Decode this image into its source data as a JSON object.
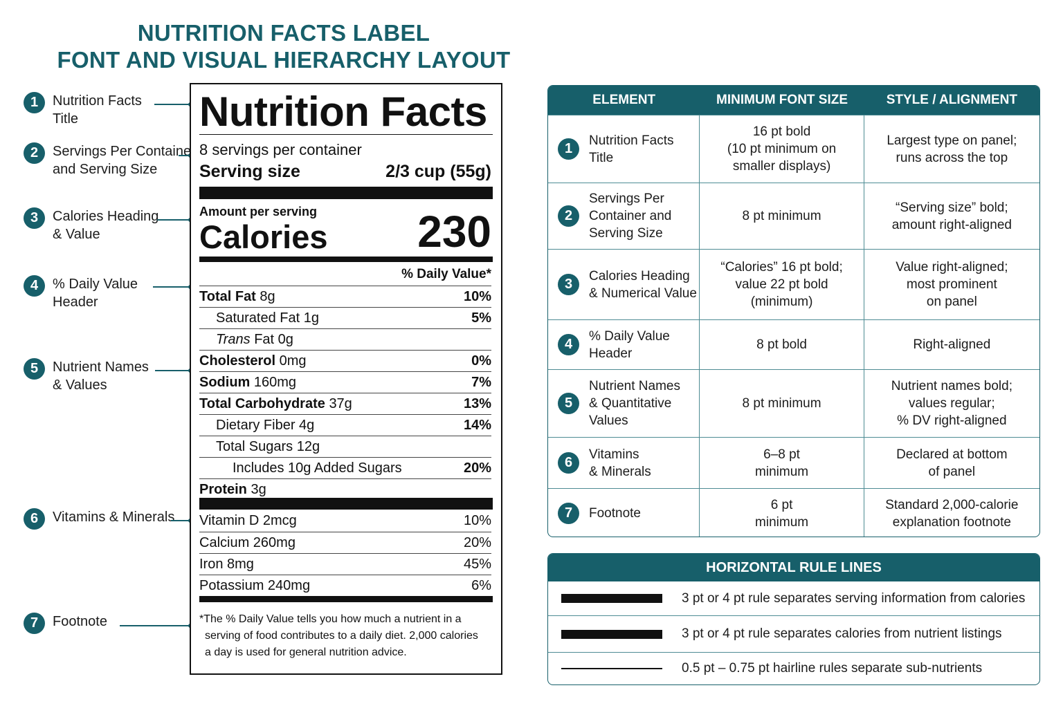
{
  "title": {
    "line1": "NUTRITION FACTS LABEL",
    "line2": "FONT AND VISUAL HIERARCHY LAYOUT"
  },
  "colors": {
    "accent": "#175f6a",
    "ink": "#111111",
    "border": "#4d8b93"
  },
  "callouts": [
    {
      "num": "1",
      "line1": "Nutrition Facts",
      "line2": "Title"
    },
    {
      "num": "2",
      "line1": "Servings Per Container",
      "line2": "and Serving Size"
    },
    {
      "num": "3",
      "line1": "Calories Heading",
      "line2": "& Value"
    },
    {
      "num": "4",
      "line1": "% Daily Value",
      "line2": "Header"
    },
    {
      "num": "5",
      "line1": "Nutrient Names",
      "line2": "& Values"
    },
    {
      "num": "6",
      "line1": "Vitamins & Minerals",
      "line2": ""
    },
    {
      "num": "7",
      "line1": "Footnote",
      "line2": ""
    }
  ],
  "label": {
    "title": "Nutrition Facts",
    "servings": "8 servings per container",
    "serving_size_label": "Serving size",
    "serving_size_value": "2/3 cup (55g)",
    "amount_per_serving": "Amount per serving",
    "calories_label": "Calories",
    "calories_value": "230",
    "dv_header": "% Daily Value*",
    "nutrients": [
      {
        "name": "Total Fat",
        "amount": "8g",
        "dv": "10%"
      },
      {
        "name": "Saturated Fat",
        "amount": "1g",
        "dv": "5%"
      },
      {
        "name": "Trans",
        "amount": "Fat 0g",
        "dv": ""
      },
      {
        "name": "Cholesterol",
        "amount": "0mg",
        "dv": "0%"
      },
      {
        "name": "Sodium",
        "amount": "160mg",
        "dv": "7%"
      },
      {
        "name": "Total Carbohydrate",
        "amount": "37g",
        "dv": "13%"
      },
      {
        "name": "Dietary Fiber",
        "amount": "4g",
        "dv": "14%"
      },
      {
        "name": "Total Sugars",
        "amount": "12g",
        "dv": ""
      },
      {
        "name": "Includes 10g Added Sugars",
        "amount": "",
        "dv": "20%"
      },
      {
        "name": "Protein",
        "amount": "3g",
        "dv": ""
      }
    ],
    "vitamins": [
      {
        "name": "Vitamin D 2mcg",
        "dv": "10%"
      },
      {
        "name": "Calcium 260mg",
        "dv": "20%"
      },
      {
        "name": "Iron 8mg",
        "dv": "45%"
      },
      {
        "name": "Potassium 240mg",
        "dv": "6%"
      }
    ],
    "footnote": {
      "line1": "*The % Daily Value tells you how much a nutrient in a",
      "line2": "serving of food contributes to a daily diet. 2,000 calories",
      "line3": "a day is used for general nutrition advice."
    }
  },
  "element_table": {
    "headers": {
      "element": "ELEMENT",
      "min_font": "MINIMUM FONT SIZE",
      "style": "STYLE / ALIGNMENT"
    },
    "rows": [
      {
        "num": "1",
        "element": [
          "Nutrition Facts",
          "Title"
        ],
        "min_font": [
          "16 pt bold",
          "(10 pt minimum on",
          "smaller displays)"
        ],
        "style": [
          "Largest type on panel;",
          "runs across the top"
        ]
      },
      {
        "num": "2",
        "element": [
          "Servings Per",
          "Container and",
          "Serving Size"
        ],
        "min_font": [
          "8 pt minimum"
        ],
        "style": [
          "“Serving size” bold;",
          "amount right-aligned"
        ]
      },
      {
        "num": "3",
        "element": [
          "Calories Heading",
          "& Numerical Value"
        ],
        "min_font": [
          "“Calories” 16 pt bold;",
          "value 22 pt bold",
          "(minimum)"
        ],
        "style": [
          "Value right-aligned;",
          "most prominent",
          "on panel"
        ]
      },
      {
        "num": "4",
        "element": [
          "% Daily Value",
          "Header"
        ],
        "min_font": [
          "8 pt bold"
        ],
        "style": [
          "Right-aligned"
        ]
      },
      {
        "num": "5",
        "element": [
          "Nutrient Names",
          "& Quantitative",
          "Values"
        ],
        "min_font": [
          "8 pt minimum"
        ],
        "style": [
          "Nutrient names bold;",
          "values regular;",
          "% DV right-aligned"
        ]
      },
      {
        "num": "6",
        "element": [
          "Vitamins",
          "& Minerals"
        ],
        "min_font": [
          "6–8 pt",
          "minimum"
        ],
        "style": [
          "Declared at bottom",
          "of panel"
        ]
      },
      {
        "num": "7",
        "element": [
          "Footnote"
        ],
        "min_font": [
          "6 pt",
          "minimum"
        ],
        "style": [
          "Standard 2,000-calorie",
          "explanation footnote"
        ]
      }
    ]
  },
  "rule_lines": {
    "title": "HORIZONTAL RULE LINES",
    "rows": [
      {
        "thickness": "thick",
        "desc": "3 pt or 4 pt rule separates serving information from calories"
      },
      {
        "thickness": "thick",
        "desc": "3 pt or 4 pt rule separates calories from nutrient listings"
      },
      {
        "thickness": "hairline",
        "desc": "0.5 pt – 0.75 pt hairline rules separate sub-nutrients"
      }
    ]
  }
}
